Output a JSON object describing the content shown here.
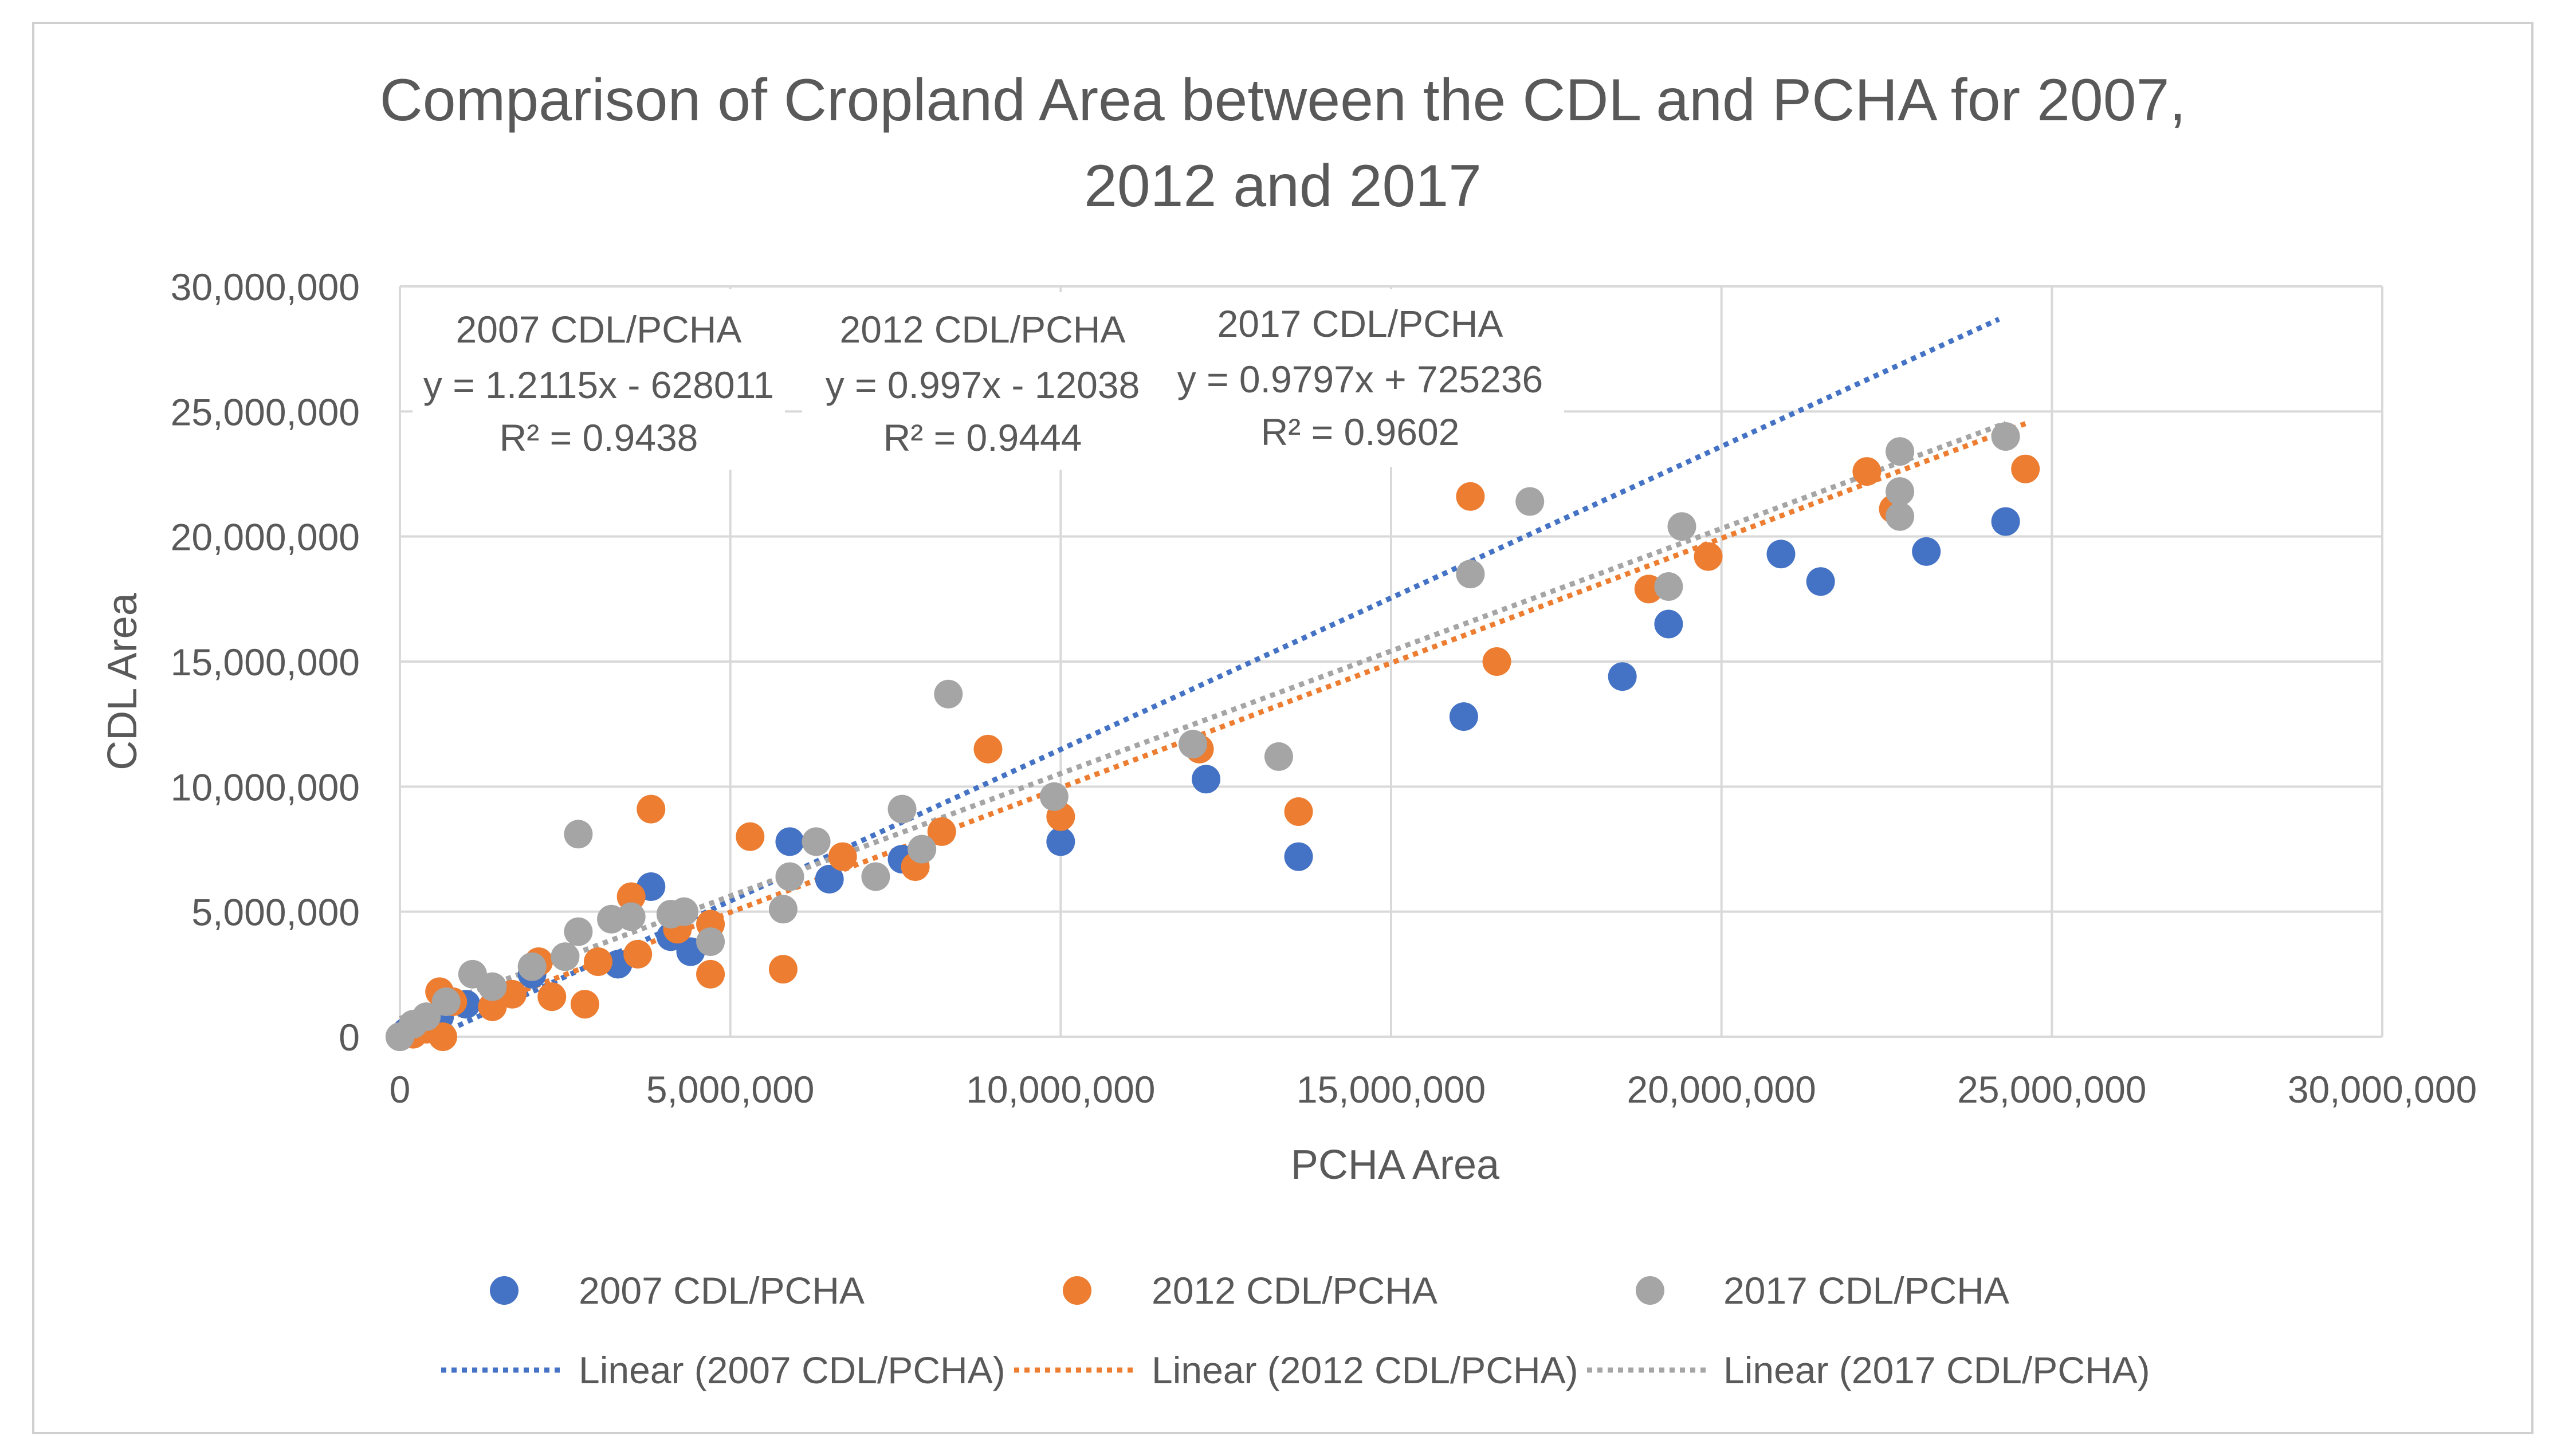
{
  "chart_data": {
    "type": "scatter",
    "title_lines": [
      "Comparison of Cropland Area between the CDL and PCHA for 2007,",
      "2012 and 2017"
    ],
    "xlabel": "PCHA Area",
    "ylabel": "CDL Area",
    "xlim": [
      0,
      30000000
    ],
    "ylim": [
      0,
      30000000
    ],
    "x_ticks": [
      0,
      5000000,
      10000000,
      15000000,
      20000000,
      25000000,
      30000000
    ],
    "y_ticks": [
      0,
      5000000,
      10000000,
      15000000,
      20000000,
      25000000,
      30000000
    ],
    "x_tick_labels": [
      "0",
      "5,000,000",
      "10,000,000",
      "15,000,000",
      "20,000,000",
      "25,000,000",
      "30,000,000"
    ],
    "y_tick_labels": [
      "0",
      "5,000,000",
      "10,000,000",
      "15,000,000",
      "20,000,000",
      "25,000,000",
      "30,000,000"
    ],
    "grid": true,
    "legend_position": "bottom",
    "series": [
      {
        "name": "2007 CDL/PCHA",
        "color": "#4472C4",
        "trendline_label": "Linear (2007 CDL/PCHA)",
        "equation": "y = 1.2115x - 628011",
        "r2": "R² = 0.9438",
        "trend_x": [
          600000,
          24200000
        ],
        "points": [
          [
            0,
            0
          ],
          [
            100000,
            200000
          ],
          [
            300000,
            500000
          ],
          [
            600000,
            800000
          ],
          [
            1000000,
            1300000
          ],
          [
            1500000,
            1700000
          ],
          [
            2000000,
            2500000
          ],
          [
            3300000,
            2900000
          ],
          [
            3800000,
            6000000
          ],
          [
            4100000,
            4000000
          ],
          [
            4400000,
            3400000
          ],
          [
            5900000,
            7800000
          ],
          [
            6500000,
            6300000
          ],
          [
            7600000,
            7100000
          ],
          [
            10000000,
            7800000
          ],
          [
            12200000,
            10300000
          ],
          [
            13600000,
            7200000
          ],
          [
            16100000,
            12800000
          ],
          [
            18500000,
            14400000
          ],
          [
            19200000,
            16500000
          ],
          [
            20900000,
            19300000
          ],
          [
            21500000,
            18200000
          ],
          [
            23100000,
            19400000
          ],
          [
            24300000,
            20600000
          ]
        ]
      },
      {
        "name": "2012 CDL/PCHA",
        "color": "#ED7D31",
        "trendline_label": "Linear (2012 CDL/PCHA)",
        "equation": "y = 0.997x - 12038",
        "r2": "R² = 0.9444",
        "trend_x": [
          0,
          24600000
        ],
        "points": [
          [
            0,
            0
          ],
          [
            200000,
            100000
          ],
          [
            400000,
            300000
          ],
          [
            600000,
            1800000
          ],
          [
            650000,
            0
          ],
          [
            800000,
            1400000
          ],
          [
            1400000,
            1200000
          ],
          [
            1700000,
            1700000
          ],
          [
            2100000,
            3000000
          ],
          [
            2300000,
            1600000
          ],
          [
            2800000,
            1300000
          ],
          [
            3000000,
            3000000
          ],
          [
            3500000,
            5600000
          ],
          [
            3600000,
            3300000
          ],
          [
            3800000,
            9100000
          ],
          [
            4200000,
            4300000
          ],
          [
            4700000,
            4500000
          ],
          [
            4700000,
            2500000
          ],
          [
            5300000,
            8000000
          ],
          [
            5800000,
            2700000
          ],
          [
            6700000,
            7200000
          ],
          [
            7800000,
            6800000
          ],
          [
            8200000,
            8200000
          ],
          [
            8900000,
            11500000
          ],
          [
            10000000,
            8800000
          ],
          [
            12100000,
            11500000
          ],
          [
            13600000,
            9000000
          ],
          [
            16200000,
            21600000
          ],
          [
            16600000,
            15000000
          ],
          [
            18900000,
            17900000
          ],
          [
            19800000,
            19200000
          ],
          [
            22200000,
            22600000
          ],
          [
            22600000,
            21100000
          ],
          [
            24600000,
            22700000
          ]
        ]
      },
      {
        "name": "2017 CDL/PCHA",
        "color": "#A5A5A5",
        "trendline_label": "Linear (2017 CDL/PCHA)",
        "equation": "y = 0.9797x + 725236",
        "r2": "R² = 0.9602",
        "trend_x": [
          0,
          24300000
        ],
        "points": [
          [
            0,
            0
          ],
          [
            200000,
            500000
          ],
          [
            400000,
            800000
          ],
          [
            700000,
            1400000
          ],
          [
            1100000,
            2500000
          ],
          [
            1400000,
            2000000
          ],
          [
            2000000,
            2800000
          ],
          [
            2500000,
            3200000
          ],
          [
            2700000,
            4200000
          ],
          [
            2700000,
            8100000
          ],
          [
            3200000,
            4700000
          ],
          [
            3500000,
            4800000
          ],
          [
            4100000,
            4900000
          ],
          [
            4300000,
            5000000
          ],
          [
            4700000,
            3800000
          ],
          [
            5800000,
            5100000
          ],
          [
            5900000,
            6400000
          ],
          [
            6300000,
            7800000
          ],
          [
            7200000,
            6400000
          ],
          [
            7600000,
            9100000
          ],
          [
            7900000,
            7500000
          ],
          [
            8300000,
            13700000
          ],
          [
            9900000,
            9600000
          ],
          [
            12000000,
            11700000
          ],
          [
            13300000,
            11200000
          ],
          [
            16200000,
            18500000
          ],
          [
            17100000,
            21400000
          ],
          [
            19200000,
            18000000
          ],
          [
            19400000,
            20400000
          ],
          [
            22700000,
            23400000
          ],
          [
            22700000,
            21800000
          ],
          [
            22700000,
            20800000
          ],
          [
            24300000,
            24000000
          ]
        ]
      }
    ]
  }
}
